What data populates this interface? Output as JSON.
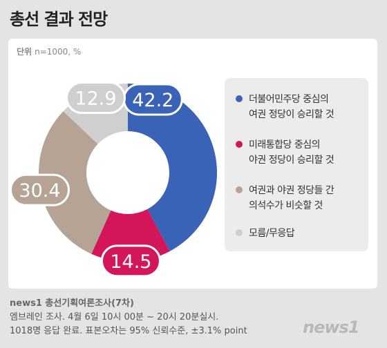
{
  "title": "총선 결과 전망",
  "unit": {
    "label": "단위",
    "text": "n=1000, %"
  },
  "chart_data": {
    "type": "pie",
    "categories": [
      "더불어민주당 중심의 여권 정당이 승리할 것",
      "미래통합당 중심의 야권 정당이 승리할 것",
      "여권과 야권 정당들 간 의석수가 비슷할 것",
      "모름/무응답"
    ],
    "values": [
      42.2,
      14.5,
      30.4,
      12.9
    ],
    "value_labels": [
      "42.2",
      "14.5",
      "30.4",
      "12.9"
    ],
    "colors": [
      "#3a62b6",
      "#d3165a",
      "#b5a495",
      "#cfcfcf"
    ],
    "legend_position": "right"
  },
  "legend": [
    {
      "lines": [
        "더불어민주당 중심의",
        "여권 정당이 승리할 것"
      ]
    },
    {
      "lines": [
        "미래통합당 중심의",
        "야권 정당이 승리할 것"
      ]
    },
    {
      "lines": [
        "여권과 야권 정당들 간",
        "의석수가 비슷할 것"
      ]
    },
    {
      "lines": [
        "모름/무응답"
      ]
    }
  ],
  "source": {
    "title": "news1 총선기획여론조사(7차)",
    "line1": "엠브레인 조사. 4월 6일 10시 00분 ~ 20시 20분실시.",
    "line2": "1018명 응답 완료. 표본오차는 95% 신뢰수준, ±3.1% point"
  },
  "logo": "news1"
}
